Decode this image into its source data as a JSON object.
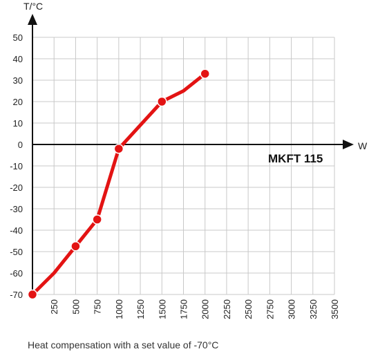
{
  "chart_data": {
    "type": "line",
    "title": "",
    "annotation": "MKFT 115",
    "xlabel": "W",
    "ylabel": "T/°C",
    "xlim": [
      0,
      3500
    ],
    "ylim": [
      -70,
      50
    ],
    "x_ticks": [
      250,
      500,
      750,
      1000,
      1250,
      1500,
      1750,
      2000,
      2250,
      2500,
      2750,
      3000,
      3250,
      3500
    ],
    "y_ticks": [
      50,
      40,
      30,
      20,
      10,
      0,
      -10,
      -20,
      -30,
      -40,
      -50,
      -60,
      -70
    ],
    "grid": true,
    "series": [
      {
        "x": [
          0,
          250,
          500,
          750,
          1000,
          1250,
          1500,
          1750,
          2000
        ],
        "y": [
          -70,
          -60,
          -47.5,
          -35,
          -2,
          9,
          20,
          25,
          33
        ],
        "markers_at_x": [
          0,
          500,
          750,
          1000,
          1500,
          2000
        ]
      }
    ],
    "caption": "Heat compensation with a set value of -70°C"
  },
  "colors": {
    "line": "#e31313",
    "grid": "#c8c8c8",
    "axis": "#111111"
  }
}
